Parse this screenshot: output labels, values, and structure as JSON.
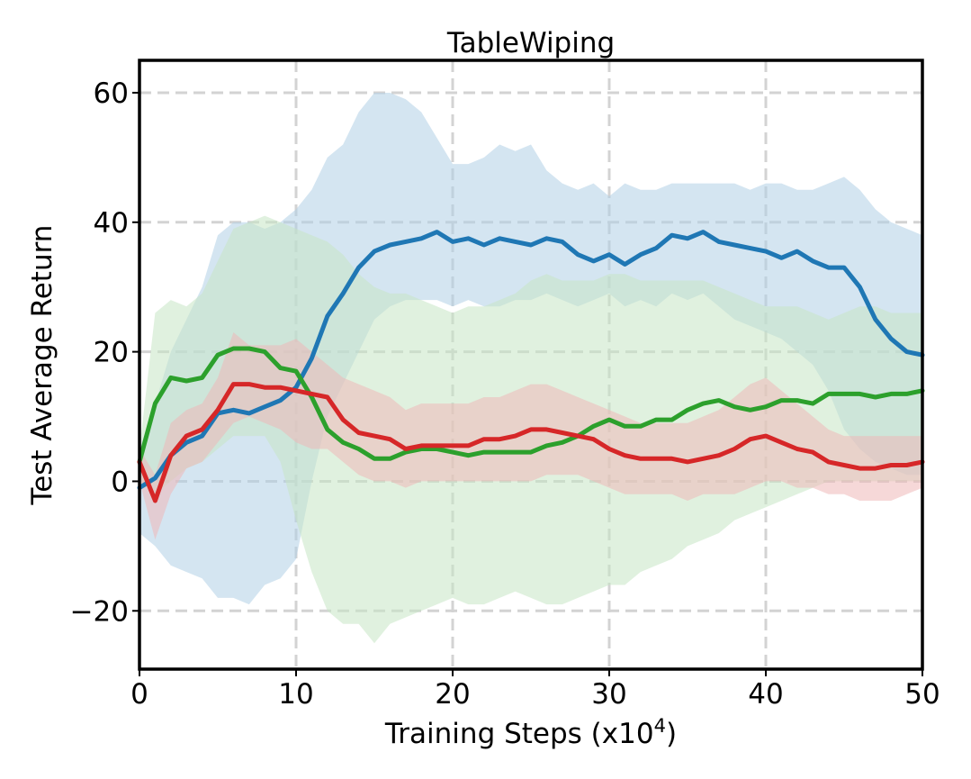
{
  "chart_data": {
    "type": "line",
    "title": "TableWiping",
    "xlabel": "Training Steps (x10",
    "xlabel_superscript": "4",
    "xlabel_suffix": ")",
    "ylabel": "Test Average Return",
    "xlim": [
      0,
      50
    ],
    "ylim": [
      -29,
      65
    ],
    "xticks": [
      0,
      10,
      20,
      30,
      40,
      50
    ],
    "xtick_labels": [
      "0",
      "10",
      "20",
      "30",
      "40",
      "50"
    ],
    "yticks": [
      -20,
      0,
      20,
      40,
      60
    ],
    "ytick_labels": [
      "−20",
      "0",
      "20",
      "40",
      "60"
    ],
    "grid": true,
    "legend": "none",
    "x": [
      0,
      1,
      2,
      3,
      4,
      5,
      6,
      7,
      8,
      9,
      10,
      11,
      12,
      13,
      14,
      15,
      16,
      17,
      18,
      19,
      20,
      21,
      22,
      23,
      24,
      25,
      26,
      27,
      28,
      29,
      30,
      31,
      32,
      33,
      34,
      35,
      36,
      37,
      38,
      39,
      40,
      41,
      42,
      43,
      44,
      45,
      46,
      47,
      48,
      49,
      50
    ],
    "series": [
      {
        "name": "blue",
        "color": "#1f77b4",
        "band_color": "#b0cfe6",
        "mean": [
          -1,
          0.5,
          4,
          6,
          7,
          10.5,
          11,
          10.5,
          11.5,
          12.5,
          14.5,
          19,
          25.5,
          29,
          33,
          35.5,
          36.5,
          37,
          37.5,
          38.5,
          37,
          37.5,
          36.5,
          37.5,
          37,
          36.5,
          37.5,
          37,
          35,
          34,
          35,
          33.5,
          35,
          36,
          38,
          37.5,
          38.5,
          37,
          36.5,
          36,
          35.5,
          34.5,
          35.5,
          34,
          33,
          33,
          30,
          25,
          22,
          20,
          19.5
        ],
        "upper": [
          5,
          12,
          20,
          25,
          30,
          38,
          40,
          40,
          39,
          40,
          42,
          45,
          50,
          52,
          57,
          60,
          60,
          59,
          57,
          53,
          49,
          49,
          50,
          52,
          51,
          52,
          48,
          46,
          45,
          46,
          44,
          46,
          45,
          45,
          46,
          46,
          46,
          46,
          46,
          45,
          46,
          46,
          45,
          45,
          46,
          47,
          45,
          42,
          40,
          39,
          38
        ],
        "lower": [
          -8,
          -10,
          -13,
          -14,
          -15,
          -18,
          -18,
          -19,
          -16,
          -15,
          -12,
          0,
          10,
          15,
          20,
          25,
          27,
          28,
          28,
          28,
          27,
          28,
          27,
          27,
          28,
          28,
          29,
          28,
          27,
          28,
          29,
          27,
          28,
          27,
          29,
          28,
          29,
          27,
          25,
          24,
          23,
          22,
          20,
          18,
          14,
          8,
          5,
          3,
          2,
          1,
          1
        ]
      },
      {
        "name": "green",
        "color": "#2ca02c",
        "band_color": "#c7e6c4",
        "mean": [
          3,
          12,
          16,
          15.5,
          16,
          19.5,
          20.5,
          20.5,
          20,
          17.5,
          17,
          13,
          8,
          6,
          5,
          3.5,
          3.5,
          4.5,
          5,
          5,
          4.5,
          4,
          4.5,
          4.5,
          4.5,
          4.5,
          5.5,
          6,
          7,
          8.5,
          9.5,
          8.5,
          8.5,
          9.5,
          9.5,
          11,
          12,
          12.5,
          11.5,
          11,
          11.5,
          12.5,
          12.5,
          12,
          13.5,
          13.5,
          13.5,
          13,
          13.5,
          13.5,
          14
        ],
        "upper": [
          5,
          26,
          28,
          27,
          29,
          34,
          39,
          40,
          41,
          40,
          39,
          38,
          37,
          35,
          32,
          30,
          29,
          29,
          28,
          27,
          26,
          27,
          27,
          28,
          29,
          31,
          32,
          31,
          31,
          31,
          32,
          32,
          31,
          31,
          31,
          31,
          31,
          30,
          29,
          28,
          27,
          27,
          27,
          26,
          25,
          26,
          27,
          27,
          26,
          26,
          26
        ],
        "lower": [
          0,
          -2,
          0,
          2,
          3,
          5,
          7,
          7,
          7,
          3,
          -6,
          -14,
          -20,
          -22,
          -22,
          -25,
          -22,
          -21,
          -20,
          -19,
          -18,
          -19,
          -19,
          -18,
          -17,
          -18,
          -19,
          -19,
          -18,
          -17,
          -16,
          -16,
          -14,
          -13,
          -12,
          -10,
          -9,
          -8,
          -6,
          -5,
          -4,
          -3,
          -2,
          -1,
          0,
          0,
          0,
          0,
          0,
          0,
          0
        ]
      },
      {
        "name": "red",
        "color": "#d62728",
        "band_color": "#efb8b8",
        "mean": [
          3,
          -3,
          4,
          7,
          8,
          11,
          15,
          15,
          14.5,
          14.5,
          14,
          13.5,
          13,
          9.5,
          7.5,
          7,
          6.5,
          5,
          5.5,
          5.5,
          5.5,
          5.5,
          6.5,
          6.5,
          7,
          8,
          8,
          7.5,
          7,
          6.5,
          5,
          4,
          3.5,
          3.5,
          3.5,
          3,
          3.5,
          4,
          5,
          6.5,
          7,
          6,
          5,
          4.5,
          3,
          2.5,
          2,
          2,
          2.5,
          2.5,
          3
        ],
        "upper": [
          5,
          1,
          9,
          11,
          12,
          16,
          23,
          21,
          21,
          21,
          22,
          20,
          18,
          16,
          15,
          14,
          13,
          11,
          12,
          12,
          12,
          12,
          13,
          13,
          14,
          15,
          15,
          14,
          13,
          12,
          11,
          10,
          9,
          9,
          9,
          9,
          10,
          11,
          13,
          15,
          16,
          14,
          12,
          10,
          8,
          7,
          7,
          7,
          7,
          7,
          7
        ],
        "lower": [
          0,
          -9,
          -2,
          2,
          3,
          6,
          9,
          10,
          9,
          8,
          6,
          5,
          5,
          3,
          1,
          0,
          0,
          -1,
          0,
          0,
          0,
          0,
          0,
          0,
          0,
          0,
          1,
          1,
          1,
          0,
          -1,
          -2,
          -2,
          -2,
          -2,
          -3,
          -2,
          -2,
          -2,
          -1,
          0,
          0,
          -1,
          -1,
          -2,
          -2,
          -3,
          -3,
          -3,
          -2,
          -1
        ]
      }
    ]
  }
}
